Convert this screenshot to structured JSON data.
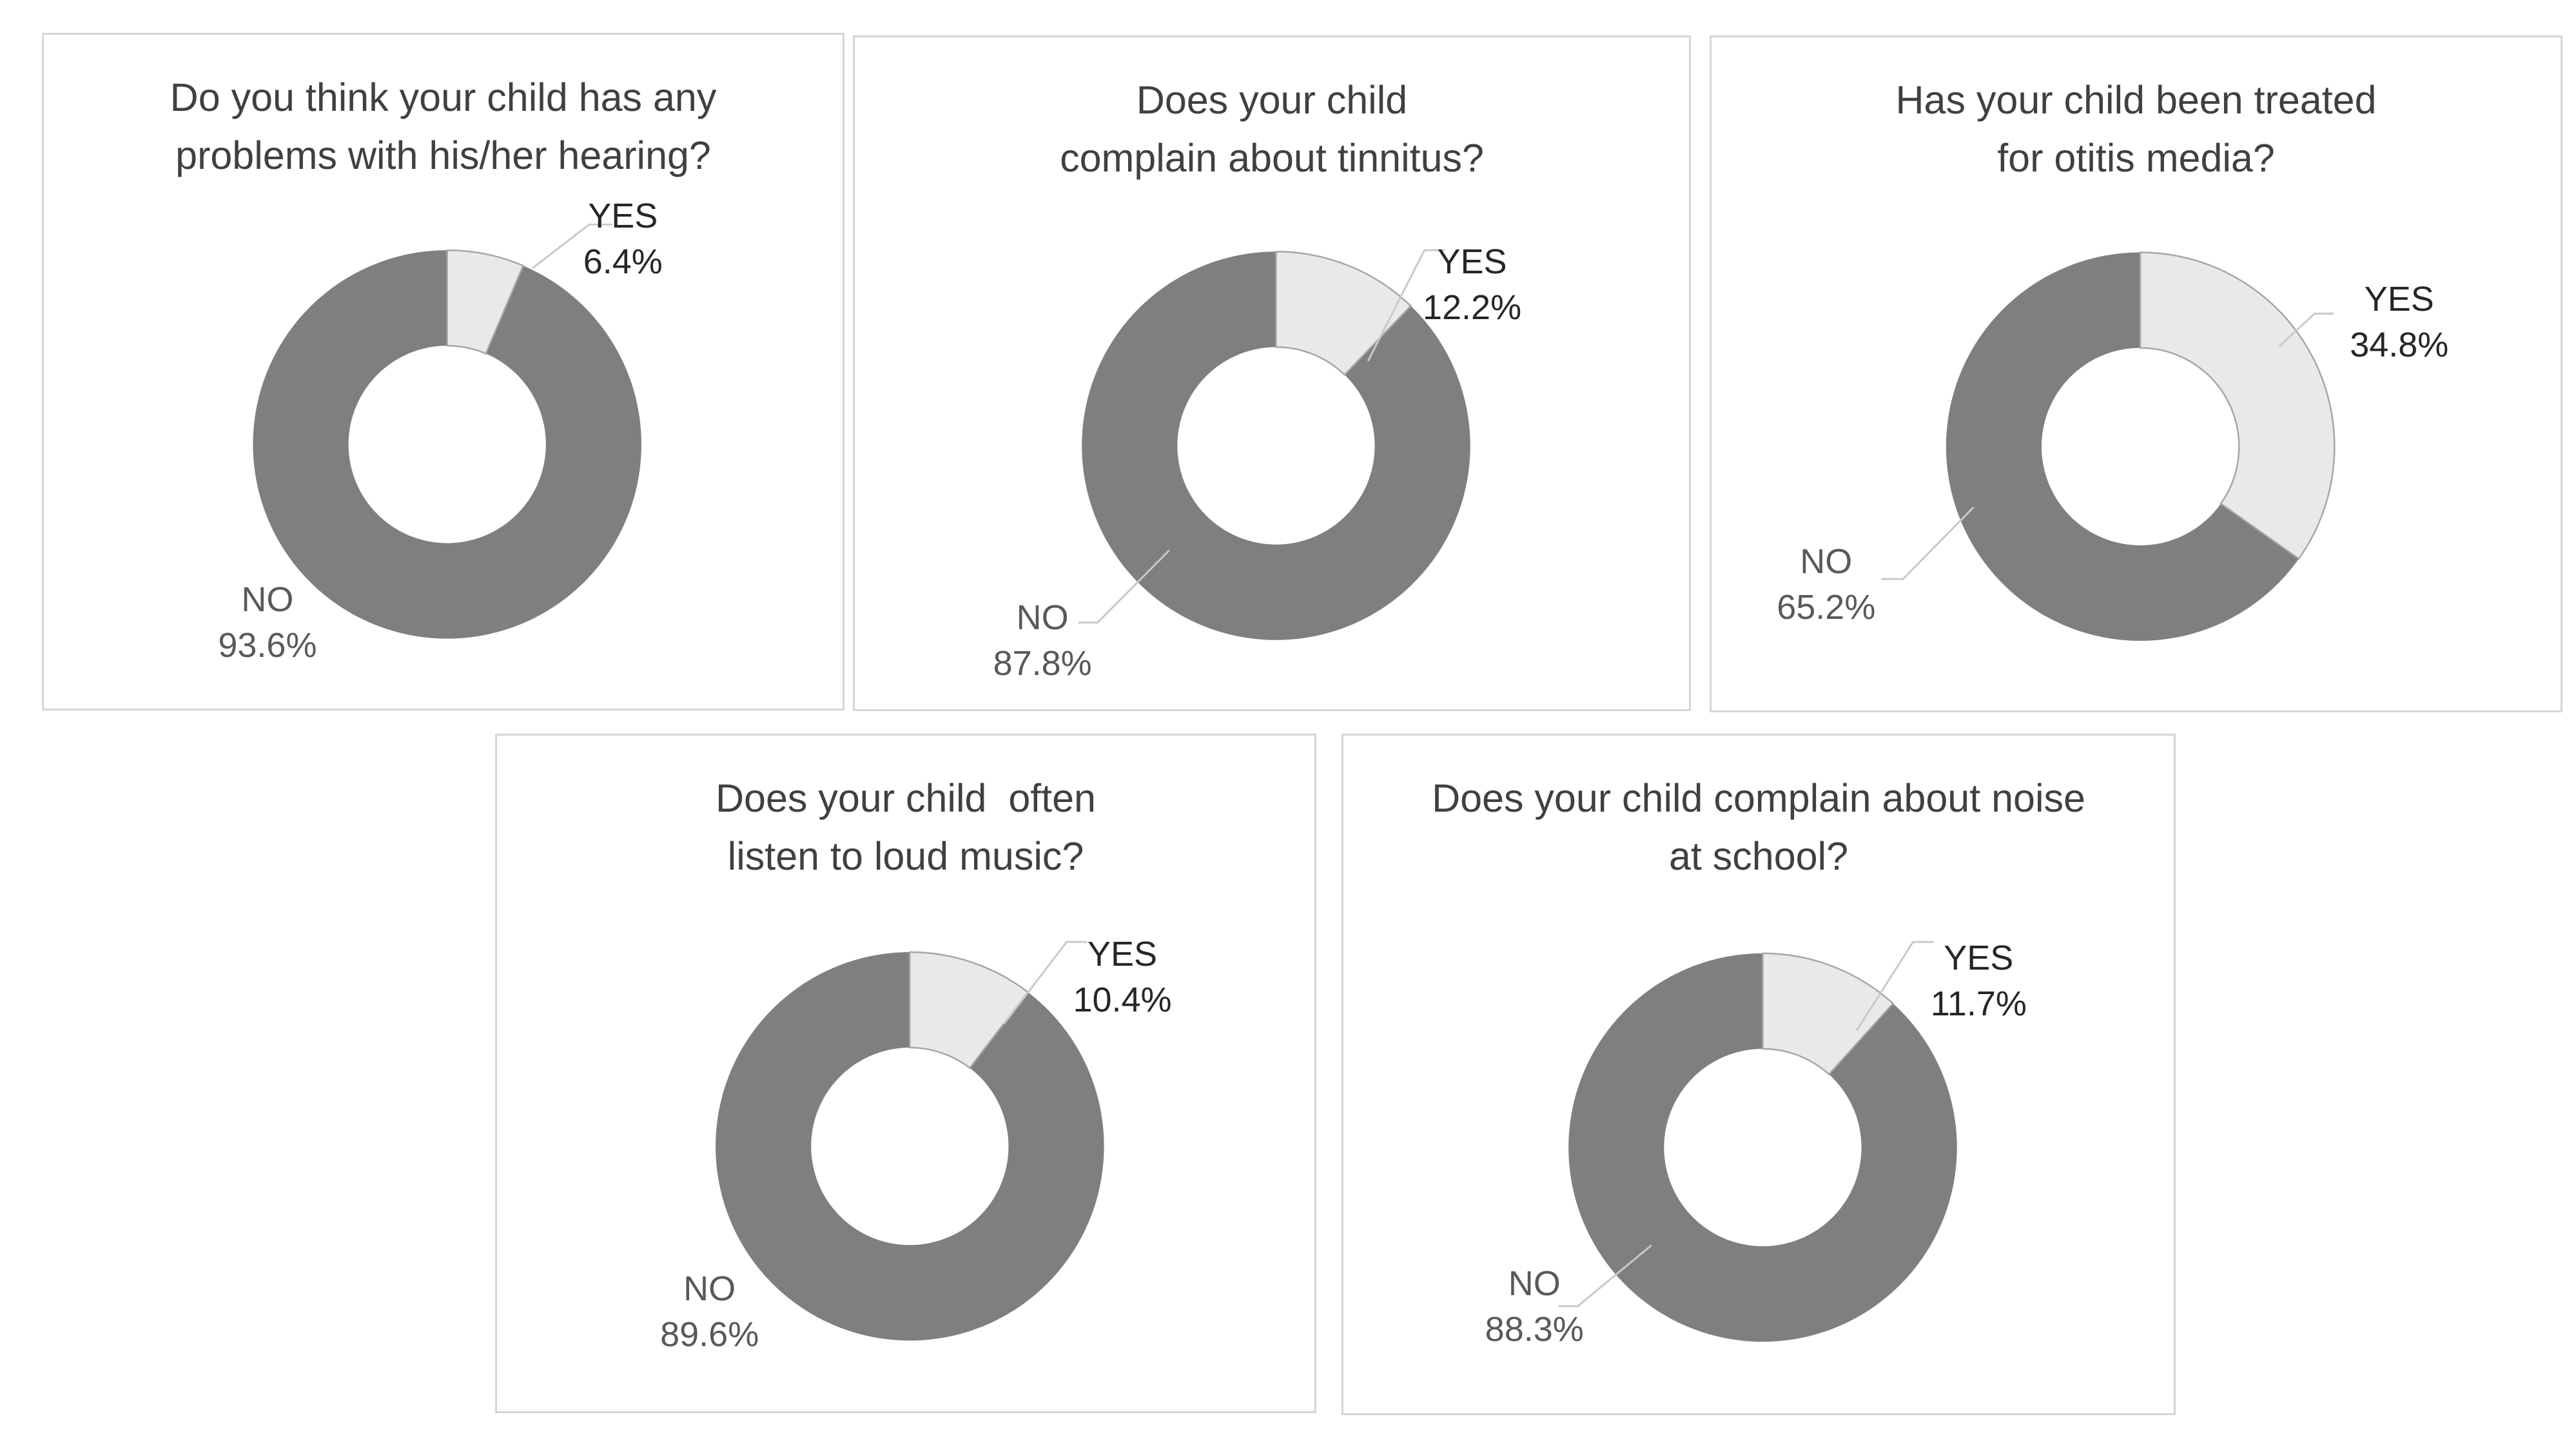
{
  "figure": {
    "description": "Five donut charts of parent questionnaire answers (YES/NO percentages)"
  },
  "colors": {
    "yes_slice": "#e9e9e9",
    "no_slice": "#7f7f7f",
    "yes_slice_border": "#a6a6a6",
    "leader_line": "#c9c9c9",
    "panel_border": "#d6d6d6",
    "title_text": "#404040",
    "yes_label_text": "#262626",
    "no_label_text": "#595959"
  },
  "chart_data": [
    {
      "type": "pie",
      "subtype": "donut",
      "title": "Do you think your child has any\nproblems with his/her hearing?",
      "categories": [
        "YES",
        "NO"
      ],
      "values": [
        6.4,
        93.6
      ],
      "display_values": [
        "6.4%",
        "93.6%"
      ],
      "unit": "percent",
      "start_angle": "12-o-clock",
      "direction": "clockwise",
      "hole_ratio": 0.5,
      "slice_colors": [
        "#e9e9e9",
        "#7f7f7f"
      ],
      "label_positions": [
        "upper-right",
        "lower-left"
      ],
      "leader_lines": [
        "YES"
      ]
    },
    {
      "type": "pie",
      "subtype": "donut",
      "title": "Does your child\ncomplain about tinnitus?",
      "categories": [
        "YES",
        "NO"
      ],
      "values": [
        12.2,
        87.8
      ],
      "display_values": [
        "12.2%",
        "87.8%"
      ],
      "unit": "percent",
      "start_angle": "12-o-clock",
      "direction": "clockwise",
      "hole_ratio": 0.5,
      "slice_colors": [
        "#e9e9e9",
        "#7f7f7f"
      ],
      "label_positions": [
        "upper-right",
        "lower-left"
      ],
      "leader_lines": [
        "YES",
        "NO"
      ]
    },
    {
      "type": "pie",
      "subtype": "donut",
      "title": "Has your child been treated\nfor otitis media?",
      "categories": [
        "YES",
        "NO"
      ],
      "values": [
        34.8,
        65.2
      ],
      "display_values": [
        "34.8%",
        "65.2%"
      ],
      "unit": "percent",
      "start_angle": "12-o-clock",
      "direction": "clockwise",
      "hole_ratio": 0.5,
      "slice_colors": [
        "#e9e9e9",
        "#7f7f7f"
      ],
      "label_positions": [
        "middle-right",
        "middle-left"
      ],
      "leader_lines": [
        "YES",
        "NO"
      ]
    },
    {
      "type": "pie",
      "subtype": "donut",
      "title": "Does your child  often\nlisten to loud music?",
      "categories": [
        "YES",
        "NO"
      ],
      "values": [
        10.4,
        89.6
      ],
      "display_values": [
        "10.4%",
        "89.6%"
      ],
      "unit": "percent",
      "start_angle": "12-o-clock",
      "direction": "clockwise",
      "hole_ratio": 0.5,
      "slice_colors": [
        "#e9e9e9",
        "#7f7f7f"
      ],
      "label_positions": [
        "upper-right",
        "lower-left"
      ],
      "leader_lines": [
        "YES"
      ]
    },
    {
      "type": "pie",
      "subtype": "donut",
      "title": "Does your child complain about noise\nat school?",
      "categories": [
        "YES",
        "NO"
      ],
      "values": [
        11.7,
        88.3
      ],
      "display_values": [
        "11.7%",
        "88.3%"
      ],
      "unit": "percent",
      "start_angle": "12-o-clock",
      "direction": "clockwise",
      "hole_ratio": 0.5,
      "slice_colors": [
        "#e9e9e9",
        "#7f7f7f"
      ],
      "label_positions": [
        "upper-right",
        "lower-left"
      ],
      "leader_lines": [
        "YES",
        "NO"
      ]
    }
  ]
}
